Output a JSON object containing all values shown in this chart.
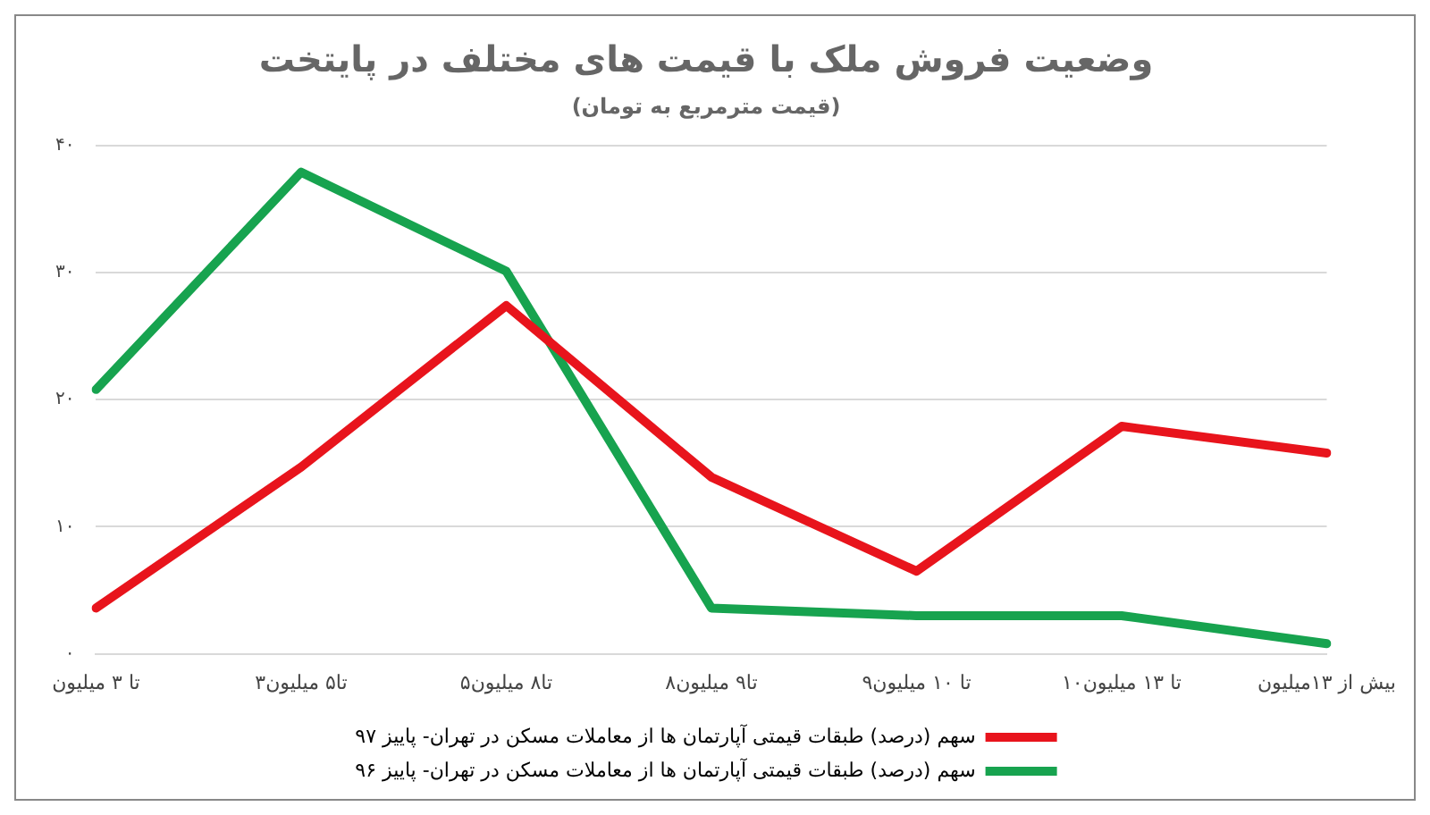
{
  "chart_data": {
    "type": "line",
    "title": "وضعیت فروش ملک با قیمت های مختلف در پایتخت",
    "subtitle": "(قیمت مترمربع به تومان)",
    "categories": [
      "تا ۳ میلیون",
      "۳تا۵ میلیون",
      "۵تا۸ میلیون",
      "۸تا۹ میلیون",
      "۹تا ۱۰ میلیون",
      "۱۰تا ۱۳ میلیون",
      "بیش از ۱۳میلیون"
    ],
    "series": [
      {
        "name": "سهم (درصد) طبقات قیمتی آپارتمان ها از معاملات مسکن در تهران- پاییز ۹۷",
        "color": "#e8141c",
        "values": [
          3.6,
          14.7,
          27.4,
          13.9,
          6.5,
          17.9,
          15.8
        ]
      },
      {
        "name": "سهم (درصد) طبقات قیمتی آپارتمان ها از معاملات مسکن در تهران- پاییز ۹۶",
        "color": "#17a34f",
        "values": [
          20.8,
          37.9,
          30.1,
          3.6,
          3.0,
          3.0,
          0.8
        ]
      }
    ],
    "ylim": [
      0,
      40
    ],
    "yticks": [
      {
        "value": 0,
        "label": "۰"
      },
      {
        "value": 10,
        "label": "۱۰"
      },
      {
        "value": 20,
        "label": "۲۰"
      },
      {
        "value": 30,
        "label": "۳۰"
      },
      {
        "value": 40,
        "label": "۴۰"
      }
    ],
    "grid": "y",
    "legend": "bottom",
    "marker": "none",
    "line_style": "solid"
  }
}
